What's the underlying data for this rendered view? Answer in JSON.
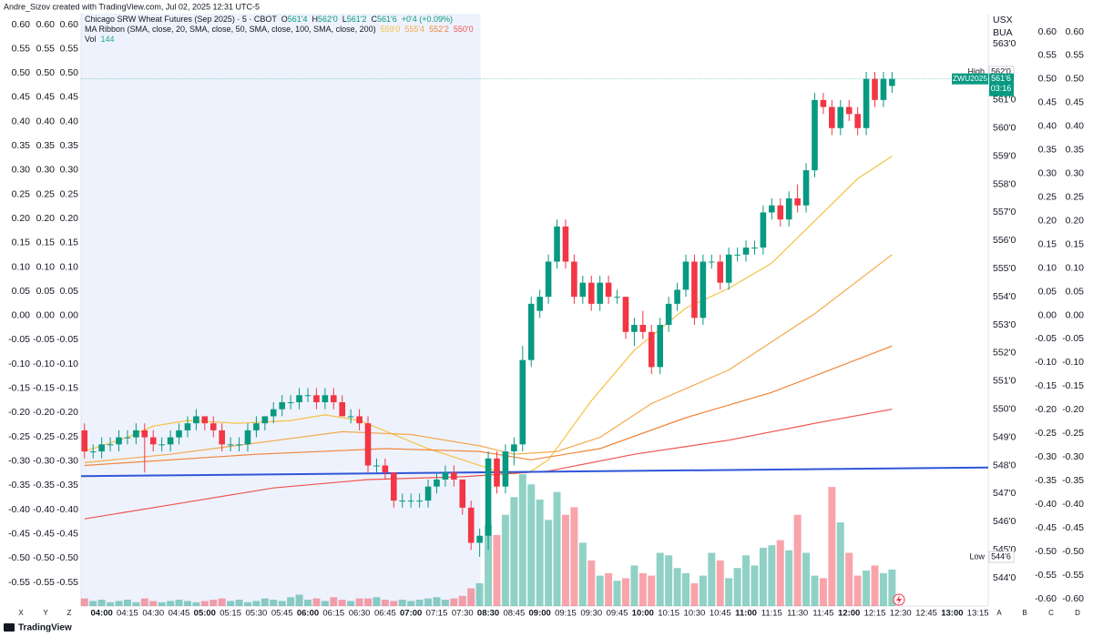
{
  "page": {
    "header": "Andre_Sizov created with TradingView.com, Jul 02, 2025 12:31 UTC-5",
    "footer": "TradingView",
    "left_axis_letters": [
      "X",
      "Y",
      "Z"
    ],
    "right_axis_letters": [
      "A",
      "B",
      "C",
      "D"
    ],
    "price_axis_headers": [
      "USX",
      "BUA"
    ]
  },
  "chart_data": {
    "type": "candlestick",
    "legend": {
      "symbol": "Chicago SRW Wheat Futures (Sep 2025) · 5 · CBOT",
      "ohlc": [
        {
          "key": "O",
          "label": "561'4"
        },
        {
          "key": "H",
          "label": "562'0"
        },
        {
          "key": "L",
          "label": "561'2"
        },
        {
          "key": "C",
          "label": "561'6"
        }
      ],
      "change": "+0'4 (+0.09%)",
      "ma_title": "MA Ribbon (SMA, close, 20, SMA, close, 50, SMA, close, 100, SMA, close, 200)",
      "vol_title": "Vol"
    },
    "symbol_code": "ZWU2025",
    "countdown": "03:16",
    "high_marker": {
      "text": "High",
      "value": 562.0,
      "label": "562'0"
    },
    "low_marker": {
      "text": "Low",
      "value": 544.75,
      "label": "544'6"
    },
    "up_color": "#089981",
    "down_color": "#f23645",
    "xlim": [
      -0.4,
      105.2
    ],
    "session_break": 46.1,
    "xticks": [
      {
        "value": 2,
        "label": "04:00"
      },
      {
        "value": 5,
        "label": "04:15"
      },
      {
        "value": 8,
        "label": "04:30"
      },
      {
        "value": 11,
        "label": "04:45"
      },
      {
        "value": 14,
        "label": "05:00"
      },
      {
        "value": 17,
        "label": "05:15"
      },
      {
        "value": 20,
        "label": "05:30"
      },
      {
        "value": 23,
        "label": "05:45"
      },
      {
        "value": 26,
        "label": "06:00"
      },
      {
        "value": 29,
        "label": "06:15"
      },
      {
        "value": 32,
        "label": "06:30"
      },
      {
        "value": 35,
        "label": "06:45"
      },
      {
        "value": 38,
        "label": "07:00"
      },
      {
        "value": 41,
        "label": "07:15"
      },
      {
        "value": 44,
        "label": "07:30"
      },
      {
        "value": 47,
        "label": "08:30"
      },
      {
        "value": 50,
        "label": "08:45"
      },
      {
        "value": 53,
        "label": "09:00"
      },
      {
        "value": 56,
        "label": "09:15"
      },
      {
        "value": 59,
        "label": "09:30"
      },
      {
        "value": 62,
        "label": "09:45"
      },
      {
        "value": 65,
        "label": "10:00"
      },
      {
        "value": 68,
        "label": "10:15"
      },
      {
        "value": 71,
        "label": "10:30"
      },
      {
        "value": 74,
        "label": "10:45"
      },
      {
        "value": 77,
        "label": "11:00"
      },
      {
        "value": 80,
        "label": "11:15"
      },
      {
        "value": 83,
        "label": "11:30"
      },
      {
        "value": 86,
        "label": "11:45"
      },
      {
        "value": 89,
        "label": "12:00"
      },
      {
        "value": 92,
        "label": "12:15"
      },
      {
        "value": 95,
        "label": "12:30"
      },
      {
        "value": 98,
        "label": "12:45"
      },
      {
        "value": 101,
        "label": "13:00"
      },
      {
        "value": 104,
        "label": "13:15"
      }
    ],
    "ylim": [
      543.0,
      564.07
    ],
    "yticks": [
      {
        "value": 563,
        "label": "563'0"
      },
      {
        "value": 561,
        "label": "561'0"
      },
      {
        "value": 560,
        "label": "560'0"
      },
      {
        "value": 559,
        "label": "559'0"
      },
      {
        "value": 558,
        "label": "558'0"
      },
      {
        "value": 557,
        "label": "557'0"
      },
      {
        "value": 556,
        "label": "556'0"
      },
      {
        "value": 555,
        "label": "555'0"
      },
      {
        "value": 554,
        "label": "554'0"
      },
      {
        "value": 553,
        "label": "553'0"
      },
      {
        "value": 552,
        "label": "552'0"
      },
      {
        "value": 551,
        "label": "551'0"
      },
      {
        "value": 550,
        "label": "550'0"
      },
      {
        "value": 549,
        "label": "549'0"
      },
      {
        "value": 548,
        "label": "548'0"
      },
      {
        "value": 547,
        "label": "547'0"
      },
      {
        "value": 546,
        "label": "546'0"
      },
      {
        "value": 545,
        "label": "545'0"
      },
      {
        "value": 544,
        "label": "544'0"
      }
    ],
    "left_ylim": [
      -0.5988,
      0.6225
    ],
    "left_ticks": [
      {
        "value": 0.6,
        "label": "0.60"
      },
      0.55,
      {
        "value": 0.5,
        "label": "0.50"
      },
      0.45,
      {
        "value": 0.4,
        "label": "0.40"
      },
      0.35,
      {
        "value": 0.3,
        "label": "0.30"
      },
      0.25,
      {
        "value": 0.2,
        "label": "0.20"
      },
      0.15,
      {
        "value": 0.1,
        "label": "0.10"
      },
      0.05,
      {
        "value": 0,
        "label": "0.00"
      },
      -0.05,
      {
        "value": -0.1,
        "label": "-0.10"
      },
      -0.15,
      {
        "value": -0.2,
        "label": "-0.20"
      },
      -0.25,
      {
        "value": -0.3,
        "label": "-0.30"
      },
      -0.35,
      {
        "value": -0.4,
        "label": "-0.40"
      },
      -0.45,
      {
        "value": -0.5,
        "label": "-0.50"
      },
      -0.55
    ],
    "right_ylim": [
      -0.6154,
      0.6385
    ],
    "right_ticks": [
      {
        "value": 0.6,
        "label": "0.60"
      },
      0.55,
      {
        "value": 0.5,
        "label": "0.50"
      },
      0.45,
      {
        "value": 0.4,
        "label": "0.40"
      },
      0.35,
      {
        "value": 0.3,
        "label": "0.30"
      },
      0.25,
      {
        "value": 0.2,
        "label": "0.20"
      },
      0.15,
      {
        "value": 0.1,
        "label": "0.10"
      },
      0.05,
      {
        "value": 0,
        "label": "0.00"
      },
      -0.05,
      {
        "value": -0.1,
        "label": "-0.10"
      },
      -0.15,
      {
        "value": -0.2,
        "label": "-0.20"
      },
      -0.25,
      {
        "value": -0.3,
        "label": "-0.30"
      },
      -0.35,
      {
        "value": -0.4,
        "label": "-0.40"
      },
      -0.45,
      {
        "value": -0.5,
        "label": "-0.50"
      },
      -0.55,
      {
        "value": -0.6,
        "label": "-0.60"
      }
    ],
    "volume_ylim": [
      0,
      700
    ],
    "candles": {
      "open": [
        549.25,
        548.5,
        548.5,
        548.75,
        548.75,
        549.0,
        549.0,
        549.25,
        549.0,
        548.75,
        548.75,
        549.0,
        549.25,
        549.5,
        549.75,
        549.5,
        549.25,
        548.75,
        548.75,
        548.75,
        549.25,
        549.5,
        549.75,
        550.0,
        550.25,
        550.25,
        550.5,
        550.5,
        550.25,
        550.5,
        550.25,
        549.75,
        549.75,
        549.5,
        548.0,
        548.0,
        547.75,
        546.75,
        546.75,
        546.75,
        546.75,
        547.25,
        547.5,
        547.75,
        547.5,
        546.5,
        545.25,
        545.5,
        548.25,
        547.25,
        548.5,
        548.75,
        551.75,
        553.5,
        554.0,
        555.25,
        556.5,
        555.25,
        554.0,
        554.5,
        553.75,
        554.5,
        554.0,
        554.0,
        552.75,
        553.0,
        552.75,
        551.5,
        553.0,
        553.75,
        554.25,
        555.25,
        553.25,
        555.25,
        555.25,
        554.5,
        555.5,
        555.5,
        555.75,
        555.75,
        557.0,
        557.25,
        556.75,
        557.5,
        557.25,
        558.5,
        561.0,
        560.75,
        560.0,
        560.75,
        560.5,
        560.0,
        561.75,
        561.0,
        561.5
      ],
      "high": [
        549.5,
        548.75,
        549.0,
        549.0,
        549.25,
        549.25,
        549.5,
        549.5,
        549.25,
        549.0,
        549.25,
        549.5,
        549.75,
        550.0,
        549.75,
        549.75,
        549.5,
        549.0,
        549.0,
        549.5,
        549.75,
        549.75,
        550.25,
        550.5,
        550.5,
        550.75,
        550.75,
        550.75,
        550.75,
        550.75,
        550.5,
        550.0,
        550.0,
        549.75,
        548.25,
        548.25,
        547.75,
        547.0,
        547.0,
        547.0,
        547.5,
        547.75,
        548.0,
        548.0,
        547.5,
        546.75,
        545.75,
        548.5,
        548.5,
        548.75,
        549.0,
        552.25,
        554.0,
        554.25,
        555.5,
        556.75,
        556.75,
        555.5,
        554.75,
        554.75,
        554.75,
        554.75,
        554.25,
        554.0,
        553.25,
        553.5,
        553.0,
        553.25,
        554.0,
        554.5,
        555.5,
        555.5,
        555.5,
        555.5,
        555.5,
        555.75,
        555.75,
        556.0,
        556.0,
        557.25,
        557.5,
        557.5,
        557.75,
        558.0,
        558.75,
        561.25,
        561.25,
        561.0,
        561.0,
        561.0,
        560.75,
        562.0,
        562.0,
        562.0,
        562.0
      ],
      "low": [
        548.25,
        548.25,
        548.25,
        548.5,
        548.5,
        548.75,
        548.75,
        547.75,
        548.5,
        548.5,
        548.5,
        548.75,
        549.0,
        549.25,
        549.25,
        549.0,
        548.5,
        548.5,
        548.5,
        548.5,
        549.0,
        549.25,
        549.5,
        549.75,
        550.0,
        550.0,
        550.25,
        550.0,
        550.0,
        550.0,
        549.75,
        549.5,
        549.25,
        547.75,
        547.75,
        547.5,
        546.5,
        546.5,
        546.5,
        546.5,
        546.5,
        547.0,
        547.25,
        547.25,
        546.25,
        545.0,
        544.75,
        545.0,
        547.0,
        547.0,
        548.0,
        548.5,
        551.5,
        553.25,
        553.75,
        555.0,
        555.0,
        553.75,
        553.75,
        553.5,
        553.5,
        553.75,
        553.75,
        552.5,
        552.25,
        552.5,
        551.25,
        551.25,
        552.75,
        553.5,
        554.0,
        553.0,
        553.0,
        555.0,
        554.25,
        554.25,
        555.25,
        555.25,
        555.5,
        555.5,
        556.75,
        556.5,
        556.5,
        557.0,
        557.0,
        558.25,
        560.5,
        559.75,
        559.75,
        560.25,
        559.75,
        559.75,
        560.75,
        560.75,
        561.25
      ],
      "close": [
        548.5,
        548.5,
        548.75,
        548.75,
        549.0,
        549.0,
        549.25,
        549.0,
        548.75,
        548.75,
        549.0,
        549.25,
        549.5,
        549.75,
        549.5,
        549.25,
        548.75,
        548.75,
        548.75,
        549.25,
        549.5,
        549.75,
        550.0,
        550.25,
        550.25,
        550.5,
        550.5,
        550.25,
        550.5,
        550.25,
        549.75,
        549.75,
        549.5,
        548.0,
        548.0,
        547.75,
        546.75,
        546.75,
        546.75,
        546.75,
        547.25,
        547.5,
        547.75,
        547.5,
        546.5,
        545.25,
        545.5,
        548.25,
        547.25,
        548.5,
        548.75,
        551.75,
        553.75,
        554.0,
        555.25,
        556.5,
        555.25,
        554.0,
        554.5,
        553.75,
        554.5,
        554.0,
        554.0,
        552.75,
        553.0,
        552.75,
        551.5,
        553.0,
        553.75,
        554.25,
        555.25,
        553.25,
        555.25,
        555.25,
        554.5,
        555.5,
        555.5,
        555.75,
        555.75,
        557.0,
        557.25,
        556.75,
        557.5,
        557.25,
        558.5,
        561.0,
        560.75,
        560.0,
        560.75,
        560.5,
        560.0,
        561.75,
        561.0,
        561.75,
        561.75
      ],
      "volume": [
        30,
        20,
        25,
        15,
        20,
        25,
        15,
        30,
        20,
        15,
        20,
        25,
        20,
        15,
        20,
        25,
        30,
        20,
        25,
        15,
        20,
        30,
        25,
        20,
        35,
        45,
        25,
        30,
        20,
        35,
        25,
        20,
        30,
        30,
        35,
        25,
        20,
        25,
        20,
        25,
        30,
        35,
        25,
        30,
        40,
        70,
        90,
        320,
        280,
        360,
        430,
        520,
        480,
        420,
        340,
        450,
        360,
        390,
        250,
        180,
        120,
        130,
        100,
        110,
        160,
        130,
        120,
        210,
        200,
        150,
        130,
        90,
        120,
        210,
        180,
        110,
        150,
        200,
        160,
        230,
        240,
        260,
        220,
        360,
        210,
        120,
        110,
        470,
        330,
        210,
        120,
        140,
        160,
        130,
        144
      ]
    },
    "ma_series": [
      {
        "color": "#f5c242",
        "last_label": "559'0",
        "x": [
          0,
          5,
          8,
          12,
          18,
          24,
          28,
          32,
          36,
          40,
          44,
          48,
          50,
          52,
          54,
          59,
          64,
          70,
          75,
          80,
          85,
          90,
          94
        ],
        "values": [
          548.5,
          549.0,
          549.4,
          549.6,
          549.5,
          549.6,
          549.8,
          549.6,
          549.1,
          548.6,
          548.2,
          547.8,
          547.7,
          547.8,
          548.2,
          550.3,
          552.1,
          553.6,
          554.3,
          555.2,
          556.7,
          558.2,
          559.0
        ]
      },
      {
        "color": "#f3a94e",
        "last_label": "555'4",
        "x": [
          0,
          10,
          20,
          30,
          38,
          46,
          50,
          55,
          60,
          66,
          75,
          85,
          94
        ],
        "values": [
          548.1,
          548.4,
          548.8,
          549.2,
          549.1,
          548.7,
          548.4,
          548.5,
          549.0,
          550.2,
          551.4,
          553.4,
          555.5
        ]
      },
      {
        "color": "#f0843a",
        "last_label": "552'2",
        "x": [
          0,
          20,
          35,
          46,
          52,
          60,
          70,
          80,
          94
        ],
        "values": [
          548.0,
          548.4,
          548.6,
          548.5,
          548.2,
          548.6,
          549.7,
          550.6,
          552.25
        ]
      },
      {
        "color": "#ef5350",
        "last_label": "550'0",
        "x": [
          0,
          10,
          22,
          33,
          44,
          54,
          64,
          75,
          85,
          94
        ],
        "values": [
          546.1,
          546.6,
          547.2,
          547.5,
          547.6,
          547.8,
          548.4,
          548.9,
          549.5,
          550.0
        ]
      }
    ],
    "trendline": {
      "color": "#2f56d8",
      "x": [
        -0.4,
        105.2
      ],
      "values": [
        547.62,
        547.93
      ]
    }
  }
}
